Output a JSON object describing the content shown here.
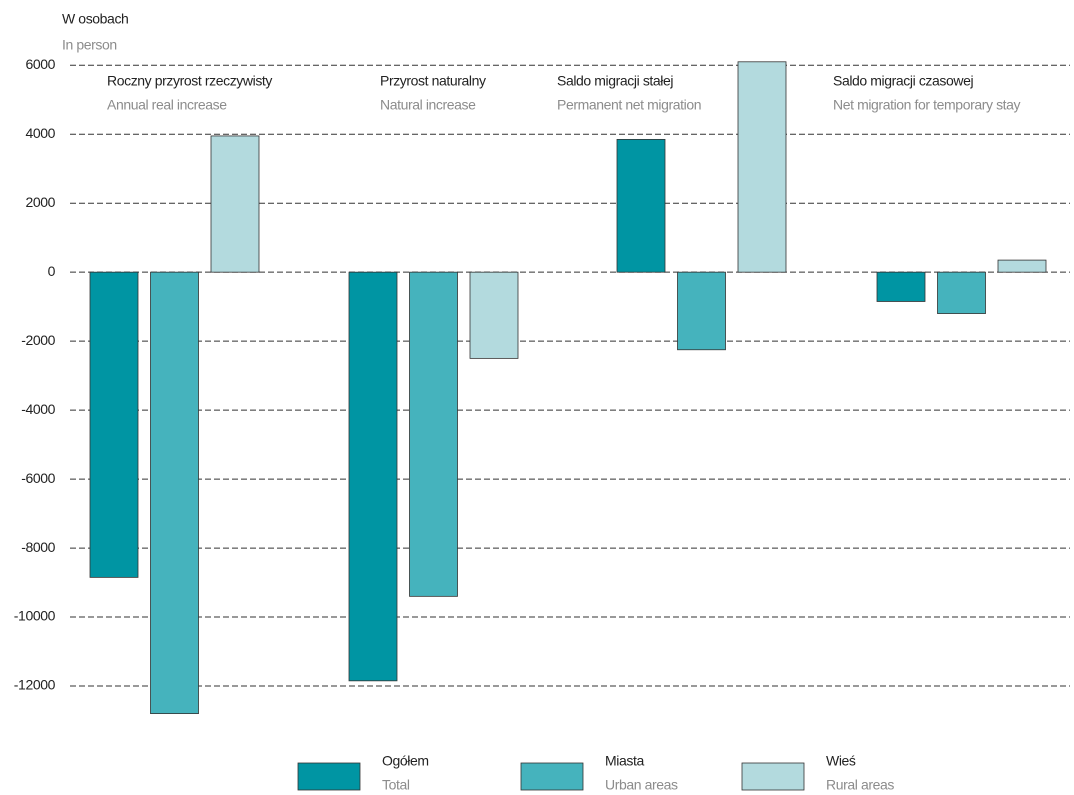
{
  "chart_data": {
    "type": "bar",
    "y_label": "W osobach",
    "y_label_en": "In person",
    "categories": [
      "Roczny przyrost rzeczywisty",
      "Przyrost naturalny",
      "Saldo migracji stałej",
      "Saldo migracji czasowej"
    ],
    "categories_en": [
      "Annual real increase",
      "Natural increase",
      "Permanent net migration",
      "Net migration for temporary stay"
    ],
    "series": [
      {
        "name": "Ogółem",
        "name_en": "Total",
        "color": "#0095a3",
        "values": [
          -8850,
          -11850,
          3850,
          -850
        ]
      },
      {
        "name": "Miasta",
        "name_en": "Urban areas",
        "color": "#45b3bd",
        "values": [
          -12800,
          -9400,
          -2250,
          -1200
        ]
      },
      {
        "name": "Wieś",
        "name_en": "Rural areas",
        "color": "#b3dade",
        "values": [
          3950,
          -2500,
          6100,
          350
        ]
      }
    ],
    "ylim": [
      -13000,
      6500
    ],
    "yticks": [
      -12000,
      -10000,
      -8000,
      -6000,
      -4000,
      -2000,
      0,
      2000,
      4000,
      6000
    ],
    "grid": true
  }
}
